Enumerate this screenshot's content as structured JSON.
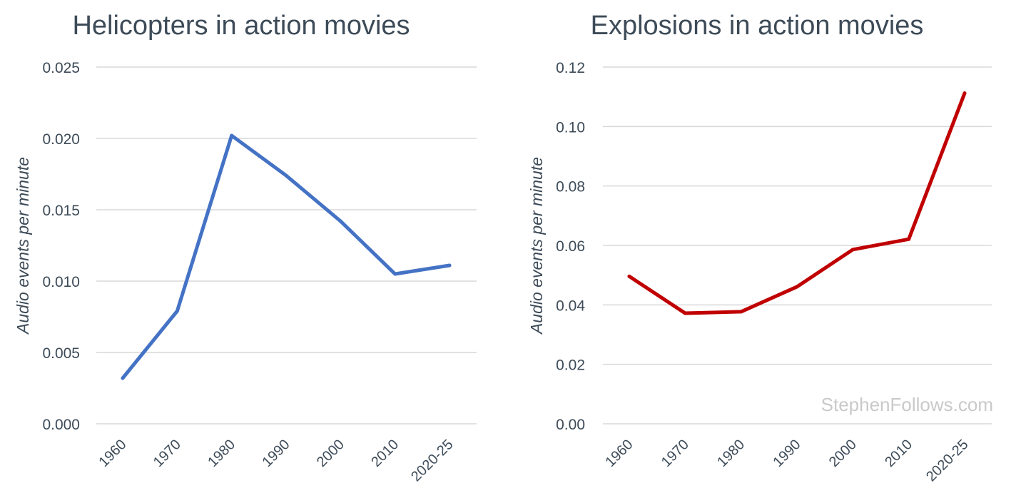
{
  "watermark": "StephenFollows.com",
  "colors": {
    "text": "#3d4b58",
    "grid": "#d9d9d9"
  },
  "chart_data": [
    {
      "type": "line",
      "title": "Helicopters in action movies",
      "ylabel": "Audio events per minute",
      "xlabel": "",
      "categories": [
        "1960",
        "1970",
        "1980",
        "1990",
        "2000",
        "2010",
        "2020-25"
      ],
      "series": [
        {
          "values": [
            0.0032,
            0.0079,
            0.0202,
            0.0174,
            0.0142,
            0.0105,
            0.0111
          ],
          "color": "#4472c4"
        }
      ],
      "ylim": [
        0,
        0.025
      ],
      "yticks": [
        "0.000",
        "0.005",
        "0.010",
        "0.015",
        "0.020",
        "0.025"
      ],
      "grid": true,
      "legend": "none"
    },
    {
      "type": "line",
      "title": "Explosions in action movies",
      "ylabel": "Audio events per minute",
      "xlabel": "",
      "categories": [
        "1960",
        "1970",
        "1980",
        "1990",
        "2000",
        "2010",
        "2020-25"
      ],
      "series": [
        {
          "values": [
            0.0496,
            0.0372,
            0.0377,
            0.0461,
            0.0586,
            0.0621,
            0.1112
          ],
          "color": "#c00000"
        }
      ],
      "ylim": [
        0,
        0.12
      ],
      "yticks": [
        "0.00",
        "0.02",
        "0.04",
        "0.06",
        "0.08",
        "0.10",
        "0.12"
      ],
      "grid": true,
      "legend": "none"
    }
  ]
}
